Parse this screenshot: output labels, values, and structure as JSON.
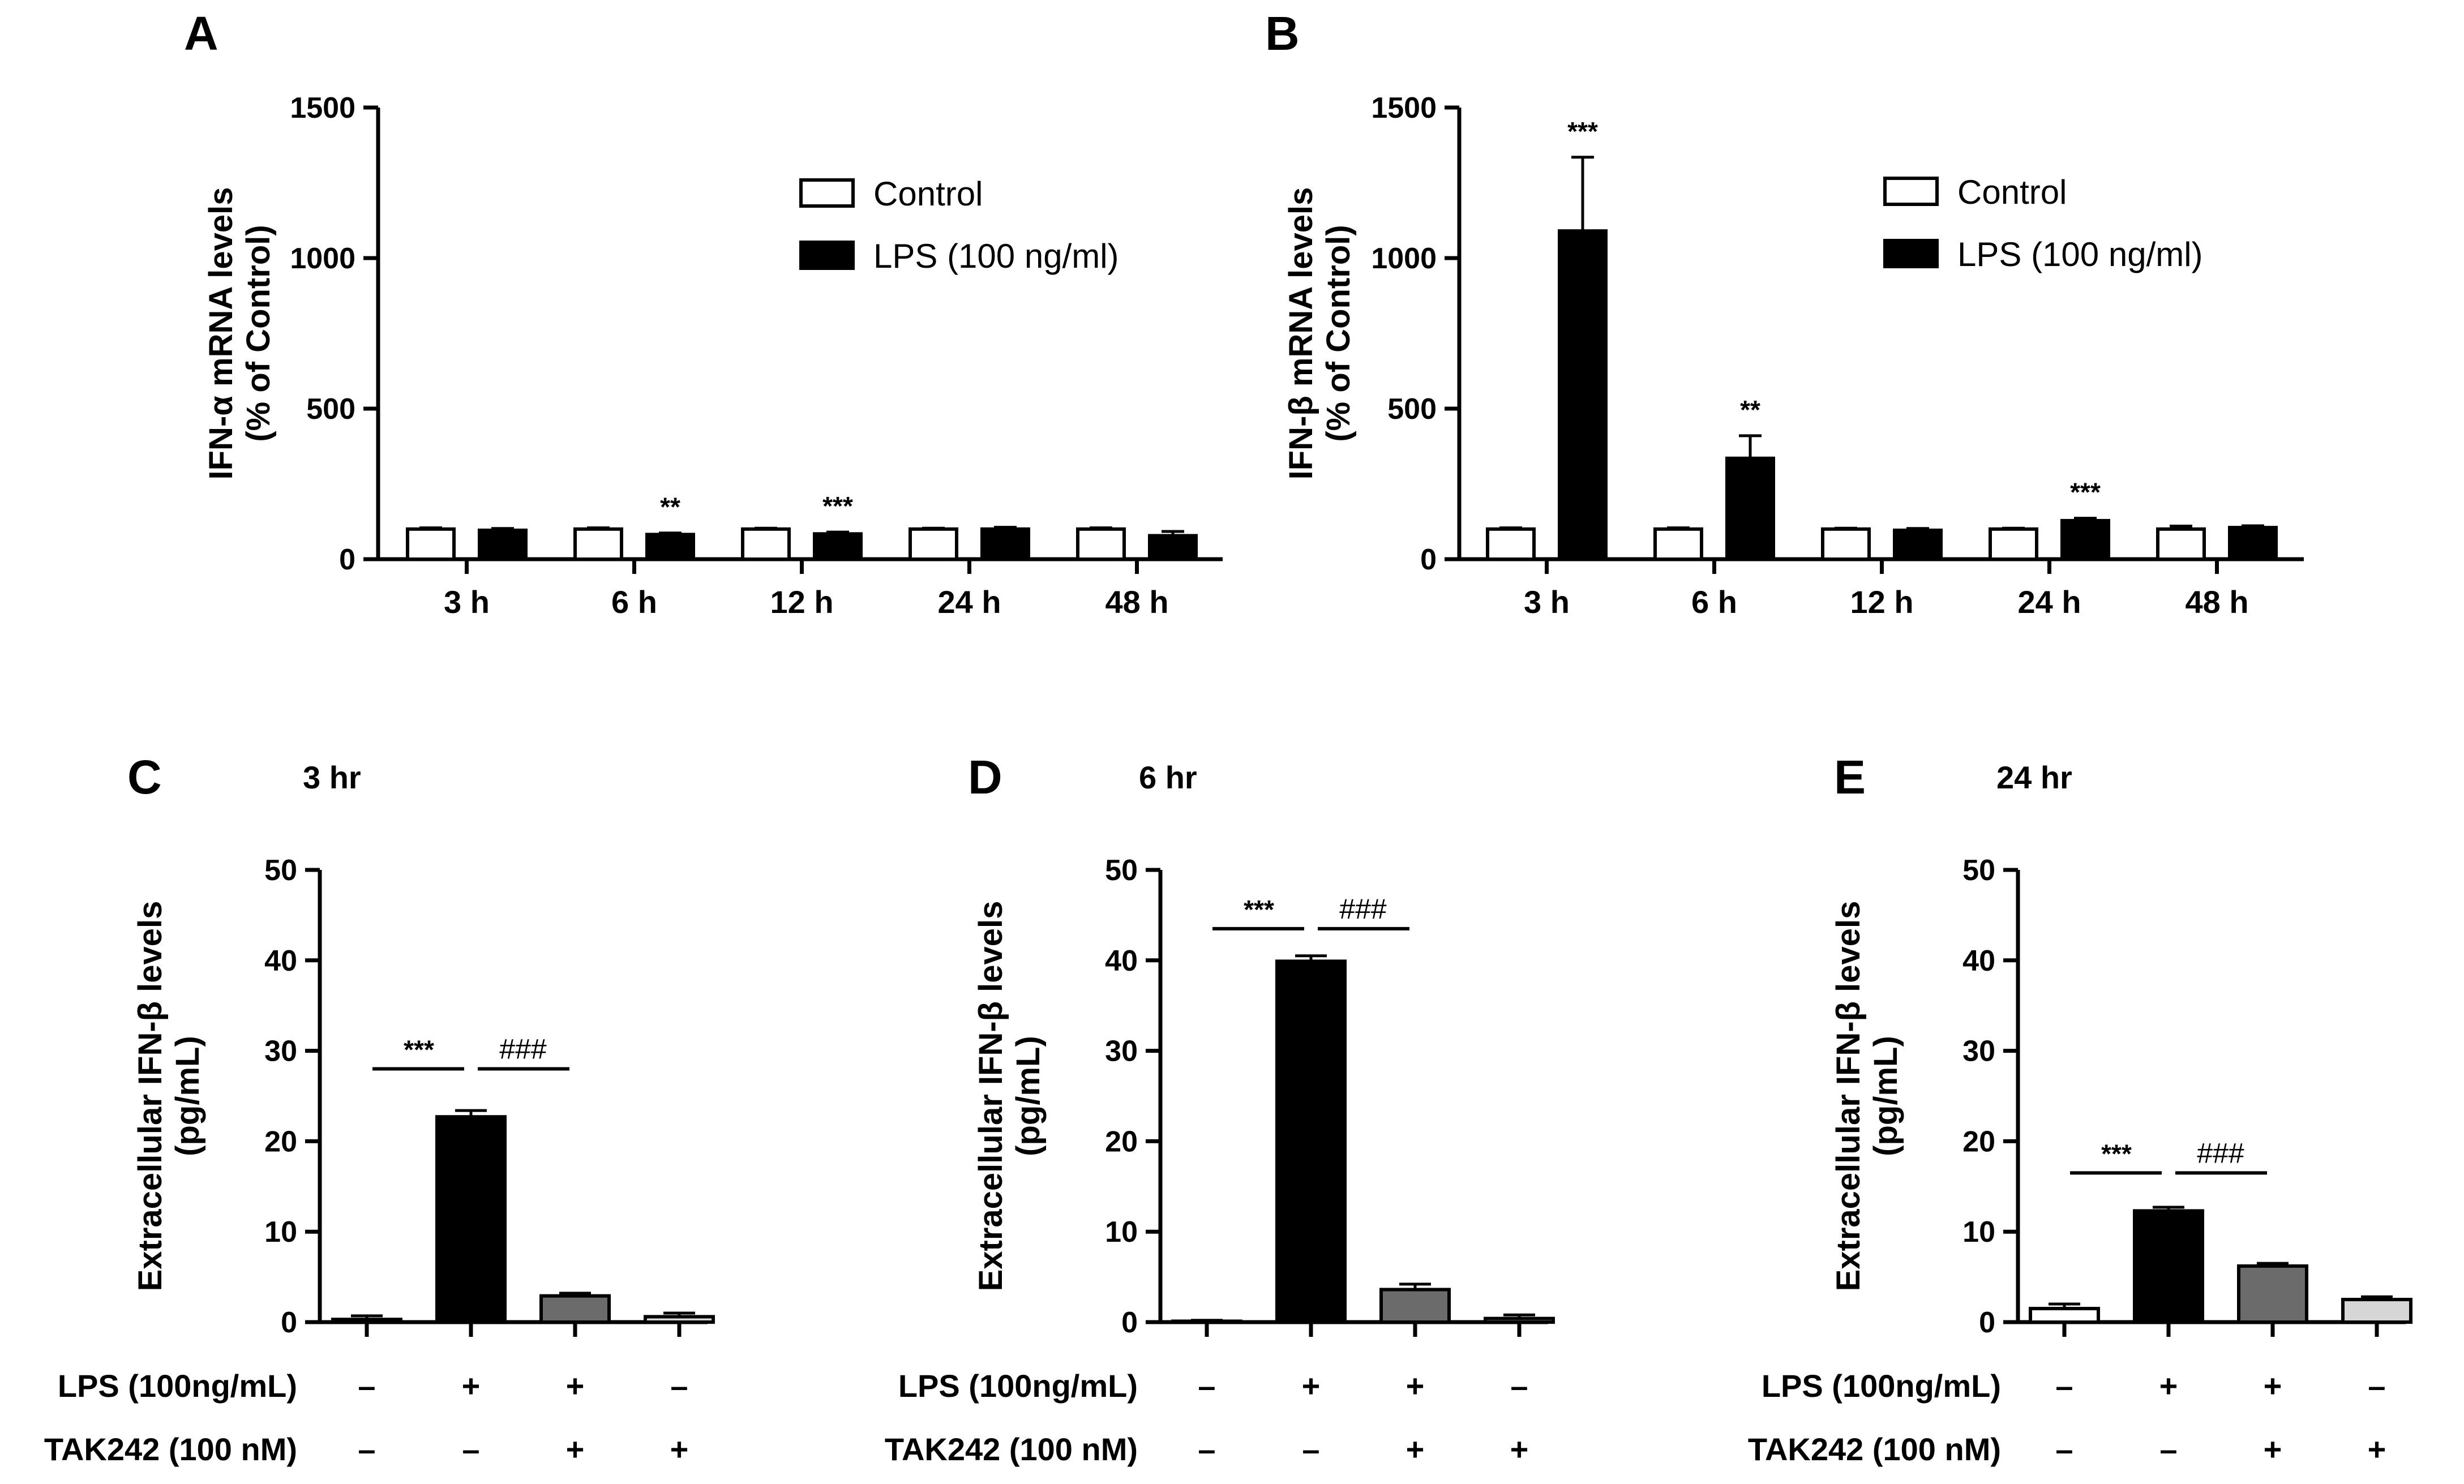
{
  "chart_data": [
    {
      "panel": "A",
      "type": "bar",
      "ylabel_line1": "IFN-α mRNA levels",
      "ylabel_line2": "(% of Control)",
      "ylim": [
        0,
        1500
      ],
      "yticks": [
        0,
        500,
        1000,
        1500
      ],
      "categories": [
        "3 h",
        "6 h",
        "12 h",
        "24 h",
        "48 h"
      ],
      "series": [
        {
          "name": "Control",
          "color": "#ffffff",
          "values": [
            100,
            100,
            100,
            100,
            100
          ],
          "errors": [
            4,
            4,
            3,
            3,
            4
          ]
        },
        {
          "name": "LPS (100 ng/ml)",
          "color": "#000000",
          "values": [
            96,
            82,
            84,
            100,
            78
          ],
          "errors": [
            6,
            5,
            6,
            6,
            14
          ]
        }
      ],
      "annotations": [
        "",
        "**",
        "***",
        "",
        ""
      ],
      "legend": [
        "Control",
        "LPS (100 ng/ml)"
      ]
    },
    {
      "panel": "B",
      "type": "bar",
      "ylabel_line1": "IFN-β mRNA levels",
      "ylabel_line2": "(% of Control)",
      "ylim": [
        0,
        1500
      ],
      "yticks": [
        0,
        500,
        1000,
        1500
      ],
      "categories": [
        "3 h",
        "6 h",
        "12 h",
        "24 h",
        "48 h"
      ],
      "series": [
        {
          "name": "Control",
          "color": "#ffffff",
          "values": [
            100,
            100,
            100,
            100,
            100
          ],
          "errors": [
            4,
            4,
            3,
            3,
            10
          ]
        },
        {
          "name": "LPS (100 ng/ml)",
          "color": "#000000",
          "values": [
            1090,
            335,
            96,
            128,
            105
          ],
          "errors": [
            245,
            75,
            6,
            8,
            6
          ]
        }
      ],
      "annotations": [
        "***",
        "**",
        "",
        "***",
        ""
      ],
      "legend": [
        "Control",
        "LPS (100 ng/ml)"
      ]
    },
    {
      "panel": "C",
      "type": "bar",
      "title": "3 hr",
      "ylabel_line1": "Extracellular IFN-β levels",
      "ylabel_line2": "(pg/mL)",
      "ylim": [
        0,
        50
      ],
      "yticks": [
        0,
        10,
        20,
        30,
        40,
        50
      ],
      "values": [
        0.3,
        22.7,
        2.9,
        0.6
      ],
      "errors": [
        0.4,
        0.7,
        0.3,
        0.4
      ],
      "colors": [
        "#ffffff",
        "#000000",
        "#6b6b6b",
        "#d6d6d6"
      ],
      "lps": [
        "–",
        "+",
        "+",
        "–"
      ],
      "tak242": [
        "–",
        "–",
        "+",
        "+"
      ],
      "lps_label": "LPS (100ng/mL)",
      "tak_label": "TAK242 (100 nM)",
      "stars": "***",
      "hashes": "###",
      "sig_level": 28
    },
    {
      "panel": "D",
      "type": "bar",
      "title": "6 hr",
      "ylabel_line1": "Extracellular IFN-β levels",
      "ylabel_line2": "(pg/mL)",
      "ylim": [
        0,
        50
      ],
      "yticks": [
        0,
        10,
        20,
        30,
        40,
        50
      ],
      "values": [
        0.1,
        39.9,
        3.6,
        0.4
      ],
      "errors": [
        0.1,
        0.6,
        0.6,
        0.4
      ],
      "colors": [
        "#ffffff",
        "#000000",
        "#6b6b6b",
        "#d6d6d6"
      ],
      "lps": [
        "–",
        "+",
        "+",
        "–"
      ],
      "tak242": [
        "–",
        "–",
        "+",
        "+"
      ],
      "lps_label": "LPS (100ng/mL)",
      "tak_label": "TAK242 (100 nM)",
      "stars": "***",
      "hashes": "###",
      "sig_level": 43.5
    },
    {
      "panel": "E",
      "type": "bar",
      "title": "24 hr",
      "ylabel_line1": "Extracellular IFN-β levels",
      "ylabel_line2": "(pg/mL)",
      "ylim": [
        0,
        50
      ],
      "yticks": [
        0,
        10,
        20,
        30,
        40,
        50
      ],
      "values": [
        1.5,
        12.3,
        6.2,
        2.5
      ],
      "errors": [
        0.5,
        0.4,
        0.3,
        0.3
      ],
      "colors": [
        "#ffffff",
        "#000000",
        "#6b6b6b",
        "#d6d6d6"
      ],
      "lps": [
        "–",
        "+",
        "+",
        "–"
      ],
      "tak242": [
        "–",
        "–",
        "+",
        "+"
      ],
      "lps_label": "LPS (100ng/mL)",
      "tak_label": "TAK242 (100 nM)",
      "stars": "***",
      "hashes": "###",
      "sig_level": 16.5
    }
  ]
}
